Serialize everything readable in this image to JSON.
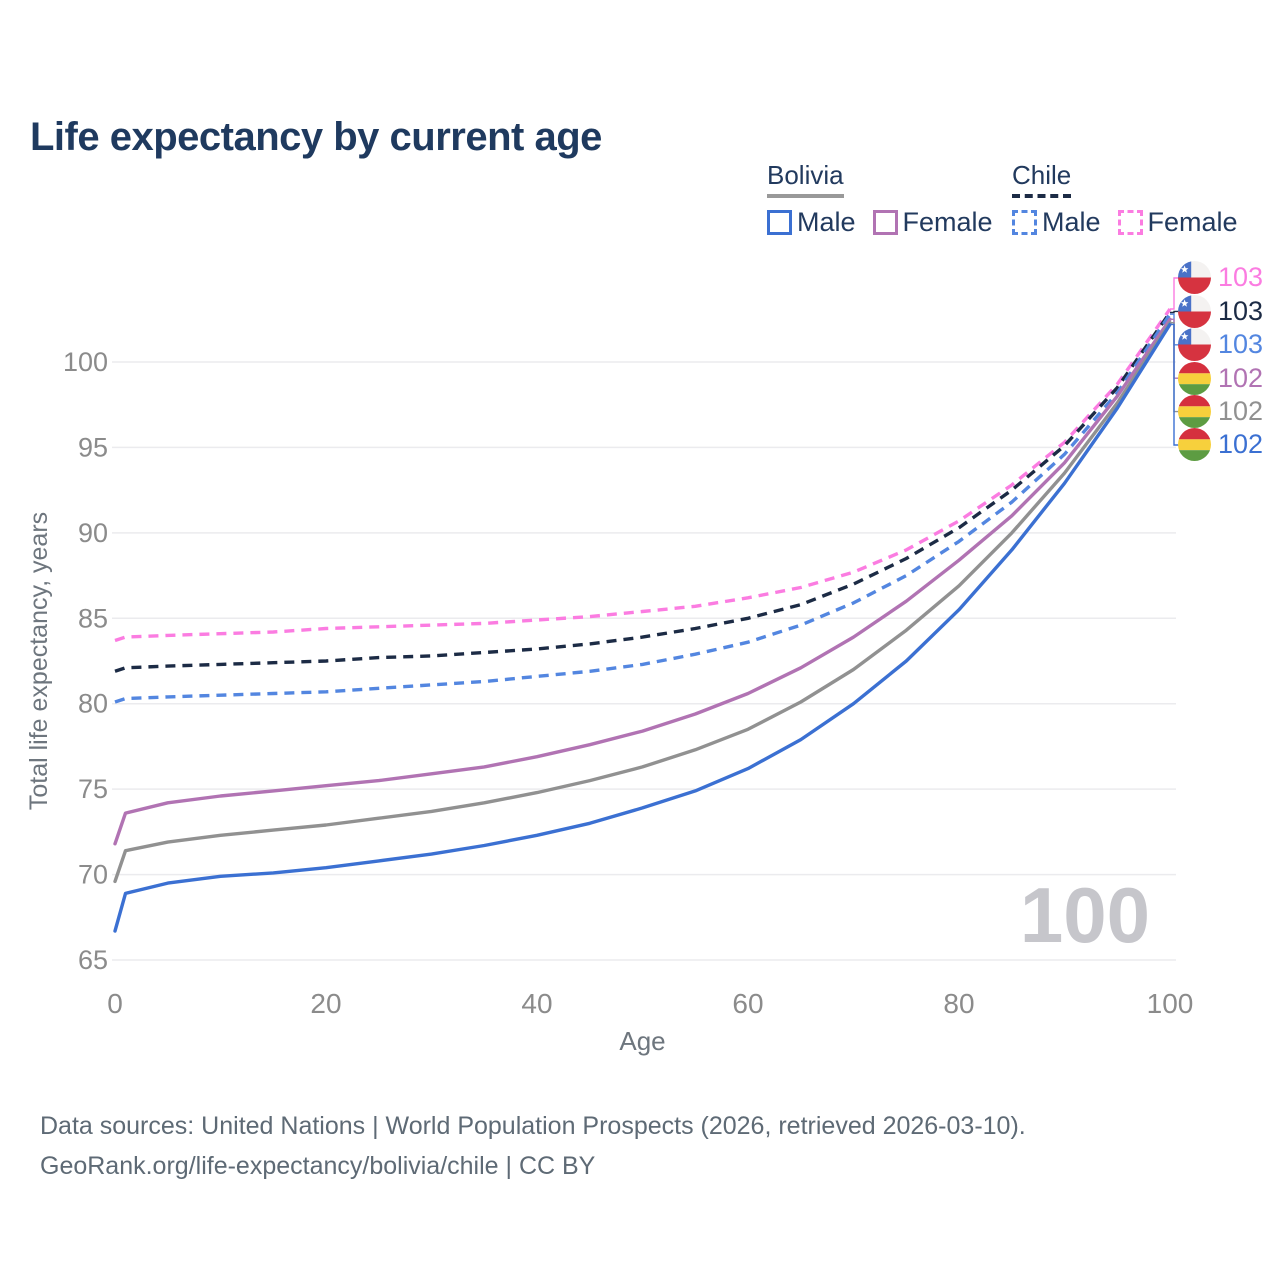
{
  "title": "Life expectancy by current age",
  "legend": {
    "groups": [
      {
        "country": "Bolivia",
        "underline_style": "solid",
        "underline_color": "#999999",
        "items": [
          {
            "label": "Male",
            "series": "bolivia_male"
          },
          {
            "label": "Female",
            "series": "bolivia_female"
          }
        ]
      },
      {
        "country": "Chile",
        "underline_style": "dashed",
        "underline_color": "#1c2b45",
        "items": [
          {
            "label": "Male",
            "series": "chile_male"
          },
          {
            "label": "Female",
            "series": "chile_female"
          }
        ]
      }
    ]
  },
  "watermark": "100",
  "footer": {
    "line1": "Data sources: United Nations | World Population Prospects (2026, retrieved 2026-03-10).",
    "line2": "GeoRank.org/life-expectancy/bolivia/chile | CC BY"
  },
  "colors": {
    "title": "#1f3a5f",
    "legend_text": "#223a5e",
    "grid": "#ebebee",
    "tick_label": "#8b8b8b",
    "axis_title": "#6e767e",
    "footer": "#5e6a75",
    "watermark": "#c6c6cb"
  },
  "chart_data": {
    "type": "line",
    "title": "Life expectancy by current age",
    "xlabel": "Age",
    "ylabel": "Total life expectancy, years",
    "xlim": [
      0,
      100
    ],
    "ylim": [
      65,
      103.5
    ],
    "xticks": [
      0,
      20,
      40,
      60,
      80,
      100
    ],
    "yticks": [
      65,
      70,
      75,
      80,
      85,
      90,
      95,
      100
    ],
    "grid": "horizontal-only",
    "legend_position": "top-right",
    "x": [
      0,
      1,
      5,
      10,
      15,
      20,
      25,
      30,
      35,
      40,
      45,
      50,
      55,
      60,
      65,
      70,
      75,
      80,
      85,
      90,
      95,
      100
    ],
    "series": [
      {
        "id": "chile_female",
        "name": "Chile Female",
        "country": "Chile",
        "sex": "Female",
        "color": "#fb7ce1",
        "dashed": true,
        "end_label": "103",
        "flag": "chile",
        "values": [
          83.7,
          83.9,
          84.0,
          84.1,
          84.2,
          84.4,
          84.5,
          84.6,
          84.7,
          84.9,
          85.1,
          85.4,
          85.7,
          86.2,
          86.8,
          87.7,
          89.0,
          90.7,
          92.8,
          95.3,
          98.7,
          103.1
        ]
      },
      {
        "id": "chile_both",
        "name": "Chile Both sexes",
        "country": "Chile",
        "sex": "Both",
        "color": "#1c2b45",
        "dashed": true,
        "end_label": "103",
        "flag": "chile",
        "values": [
          81.9,
          82.1,
          82.2,
          82.3,
          82.4,
          82.5,
          82.7,
          82.8,
          83.0,
          83.2,
          83.5,
          83.9,
          84.4,
          85.0,
          85.8,
          87.0,
          88.5,
          90.3,
          92.5,
          95.1,
          98.5,
          102.9
        ]
      },
      {
        "id": "chile_male",
        "name": "Chile Male",
        "country": "Chile",
        "sex": "Male",
        "color": "#5386e0",
        "dashed": true,
        "end_label": "103",
        "flag": "chile",
        "values": [
          80.1,
          80.3,
          80.4,
          80.5,
          80.6,
          80.7,
          80.9,
          81.1,
          81.3,
          81.6,
          81.9,
          82.3,
          82.9,
          83.6,
          84.6,
          85.9,
          87.5,
          89.5,
          91.8,
          94.6,
          98.2,
          102.8
        ]
      },
      {
        "id": "bolivia_female",
        "name": "Bolivia Female",
        "country": "Bolivia",
        "sex": "Female",
        "color": "#b173b3",
        "dashed": false,
        "end_label": "102",
        "flag": "bolivia",
        "values": [
          71.8,
          73.6,
          74.2,
          74.6,
          74.9,
          75.2,
          75.5,
          75.9,
          76.3,
          76.9,
          77.6,
          78.4,
          79.4,
          80.6,
          82.1,
          83.9,
          86.0,
          88.4,
          91.0,
          94.1,
          98.0,
          102.5
        ]
      },
      {
        "id": "bolivia_both",
        "name": "Bolivia Both sexes",
        "country": "Bolivia",
        "sex": "Both",
        "color": "#919191",
        "dashed": false,
        "end_label": "102",
        "flag": "bolivia",
        "values": [
          69.6,
          71.4,
          71.9,
          72.3,
          72.6,
          72.9,
          73.3,
          73.7,
          74.2,
          74.8,
          75.5,
          76.3,
          77.3,
          78.5,
          80.1,
          82.0,
          84.3,
          86.9,
          90.0,
          93.5,
          97.6,
          102.3
        ]
      },
      {
        "id": "bolivia_male",
        "name": "Bolivia Male",
        "country": "Bolivia",
        "sex": "Male",
        "color": "#3b70d2",
        "dashed": false,
        "end_label": "102",
        "flag": "bolivia",
        "values": [
          66.7,
          68.9,
          69.5,
          69.9,
          70.1,
          70.4,
          70.8,
          71.2,
          71.7,
          72.3,
          73.0,
          73.9,
          74.9,
          76.2,
          77.9,
          80.0,
          82.5,
          85.5,
          89.0,
          92.9,
          97.3,
          102.2
        ]
      }
    ]
  }
}
